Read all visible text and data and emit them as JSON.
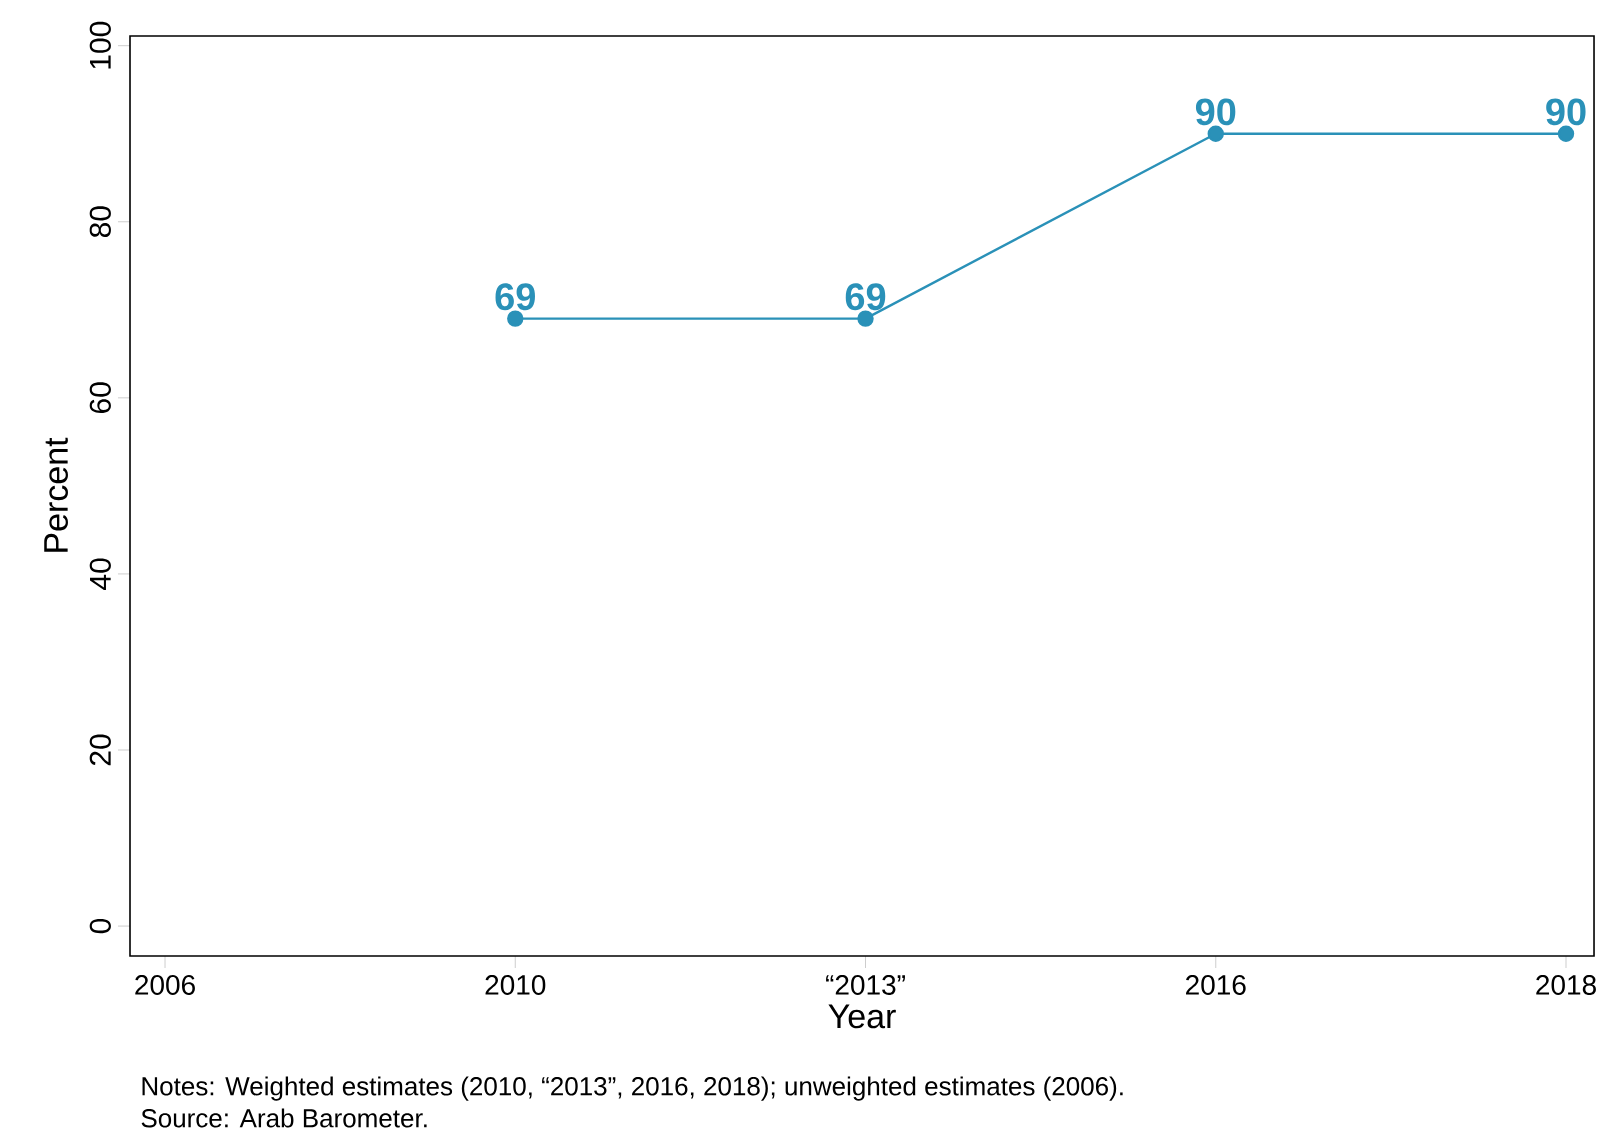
{
  "chart_data": {
    "type": "line",
    "xlabel": "Year",
    "ylabel": "Percent",
    "categories": [
      "2006",
      "2010",
      "“2013”",
      "2016",
      "2018"
    ],
    "values": [
      null,
      69,
      69,
      90,
      90
    ],
    "color": "#2a91b8",
    "ylim": [
      -3.4,
      101.1
    ],
    "yticks": [
      0,
      20,
      40,
      60,
      80,
      100
    ],
    "data_labels": true,
    "marker": "circle",
    "annotations": [
      "Notes: Weighted estimates (2010, “2013”, 2016, 2018); unweighted estimates (2006).",
      "Source: Arab Barometer."
    ]
  }
}
